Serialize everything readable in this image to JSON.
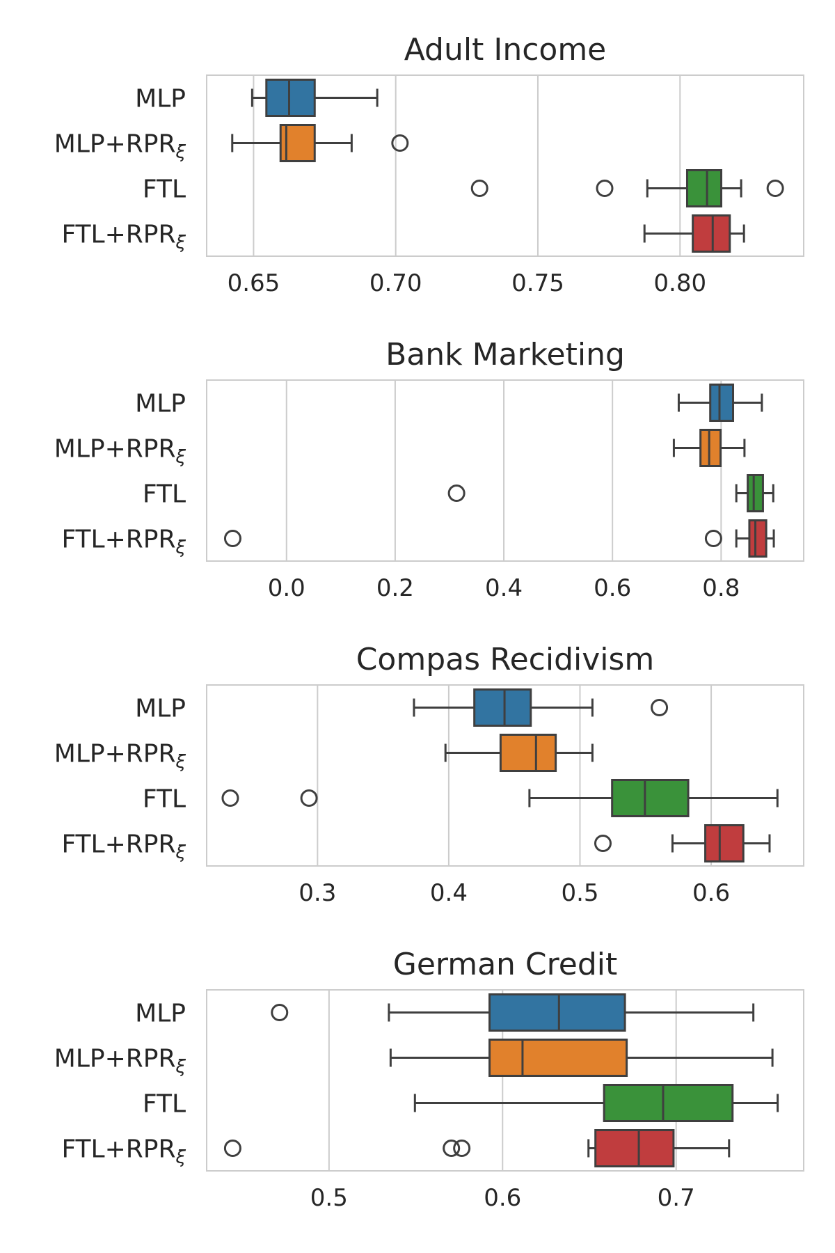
{
  "chart_data": [
    {
      "type": "box",
      "title": "Adult Income",
      "xlabel": "",
      "ylabel": "",
      "grid": true,
      "xlim": [
        0.6335,
        0.8435
      ],
      "xticks": [
        0.65,
        0.7,
        0.75,
        0.8
      ],
      "xtick_labels": [
        "0.65",
        "0.70",
        "0.75",
        "0.80"
      ],
      "categories": [
        "MLP",
        "MLP+RPR",
        "FTL",
        "FTL+RPR"
      ],
      "category_subscript": [
        "",
        "ξ",
        "",
        "ξ"
      ],
      "boxes": [
        {
          "whisker_low": 0.6495,
          "q1": 0.6545,
          "median": 0.6625,
          "q3": 0.6715,
          "whisker_high": 0.6935,
          "outliers": []
        },
        {
          "whisker_low": 0.6425,
          "q1": 0.6595,
          "median": 0.6615,
          "q3": 0.6715,
          "whisker_high": 0.6845,
          "outliers": [
            0.7015
          ]
        },
        {
          "whisker_low": 0.7885,
          "q1": 0.8025,
          "median": 0.8095,
          "q3": 0.8145,
          "whisker_high": 0.8215,
          "outliers": [
            0.7295,
            0.7735,
            0.8335
          ]
        },
        {
          "whisker_low": 0.7875,
          "q1": 0.8045,
          "median": 0.8115,
          "q3": 0.8175,
          "whisker_high": 0.8225,
          "outliers": []
        }
      ]
    },
    {
      "type": "box",
      "title": "Bank Marketing",
      "xlabel": "",
      "ylabel": "",
      "grid": true,
      "xlim": [
        -0.147,
        0.952
      ],
      "xticks": [
        0.0,
        0.2,
        0.4,
        0.6,
        0.8
      ],
      "xtick_labels": [
        "0.0",
        "0.2",
        "0.4",
        "0.6",
        "0.8"
      ],
      "categories": [
        "MLP",
        "MLP+RPR",
        "FTL",
        "FTL+RPR"
      ],
      "category_subscript": [
        "",
        "ξ",
        "",
        "ξ"
      ],
      "boxes": [
        {
          "whisker_low": 0.722,
          "q1": 0.78,
          "median": 0.797,
          "q3": 0.822,
          "whisker_high": 0.875,
          "outliers": []
        },
        {
          "whisker_low": 0.713,
          "q1": 0.762,
          "median": 0.778,
          "q3": 0.799,
          "whisker_high": 0.843,
          "outliers": []
        },
        {
          "whisker_low": 0.828,
          "q1": 0.849,
          "median": 0.86,
          "q3": 0.877,
          "whisker_high": 0.896,
          "outliers": [
            0.313
          ]
        },
        {
          "whisker_low": 0.828,
          "q1": 0.852,
          "median": 0.863,
          "q3": 0.883,
          "whisker_high": 0.897,
          "outliers": [
            -0.099,
            0.786
          ]
        }
      ]
    },
    {
      "type": "box",
      "title": "Compas Recidivism",
      "xlabel": "",
      "ylabel": "",
      "grid": true,
      "xlim": [
        0.2155,
        0.6705
      ],
      "xticks": [
        0.3,
        0.4,
        0.5,
        0.6
      ],
      "xtick_labels": [
        "0.3",
        "0.4",
        "0.5",
        "0.6"
      ],
      "categories": [
        "MLP",
        "MLP+RPR",
        "FTL",
        "FTL+RPR"
      ],
      "category_subscript": [
        "",
        "ξ",
        "",
        "ξ"
      ],
      "boxes": [
        {
          "whisker_low": 0.3735,
          "q1": 0.4195,
          "median": 0.4425,
          "q3": 0.4625,
          "whisker_high": 0.5095,
          "outliers": [
            0.5605
          ]
        },
        {
          "whisker_low": 0.3975,
          "q1": 0.4395,
          "median": 0.4665,
          "q3": 0.4815,
          "whisker_high": 0.5095,
          "outliers": []
        },
        {
          "whisker_low": 0.4615,
          "q1": 0.5245,
          "median": 0.5495,
          "q3": 0.5825,
          "whisker_high": 0.6505,
          "outliers": [
            0.2335,
            0.2935
          ]
        },
        {
          "whisker_low": 0.5705,
          "q1": 0.5955,
          "median": 0.6065,
          "q3": 0.6245,
          "whisker_high": 0.6445,
          "outliers": [
            0.5175
          ]
        }
      ]
    },
    {
      "type": "box",
      "title": "German Credit",
      "xlabel": "",
      "ylabel": "",
      "grid": true,
      "xlim": [
        0.4295,
        0.7735
      ],
      "xticks": [
        0.5,
        0.6,
        0.7
      ],
      "xtick_labels": [
        "0.5",
        "0.6",
        "0.7"
      ],
      "categories": [
        "MLP",
        "MLP+RPR",
        "FTL",
        "FTL+RPR"
      ],
      "category_subscript": [
        "",
        "ξ",
        "",
        "ξ"
      ],
      "boxes": [
        {
          "whisker_low": 0.5345,
          "q1": 0.5925,
          "median": 0.6325,
          "q3": 0.6705,
          "whisker_high": 0.7445,
          "outliers": [
            0.4715
          ]
        },
        {
          "whisker_low": 0.5355,
          "q1": 0.5925,
          "median": 0.6115,
          "q3": 0.6715,
          "whisker_high": 0.7555,
          "outliers": []
        },
        {
          "whisker_low": 0.5495,
          "q1": 0.6585,
          "median": 0.6925,
          "q3": 0.7325,
          "whisker_high": 0.7585,
          "outliers": []
        },
        {
          "whisker_low": 0.6495,
          "q1": 0.6535,
          "median": 0.6785,
          "q3": 0.6985,
          "whisker_high": 0.7305,
          "outliers": [
            0.4445,
            0.5705,
            0.5765
          ]
        }
      ]
    }
  ],
  "colors": {
    "series": [
      "#3274a1",
      "#e1812c",
      "#3a923a",
      "#c03d3e"
    ],
    "edge": "#3f3f3f",
    "grid": "#cccccc",
    "frame": "#cccccc",
    "text": "#262626"
  }
}
